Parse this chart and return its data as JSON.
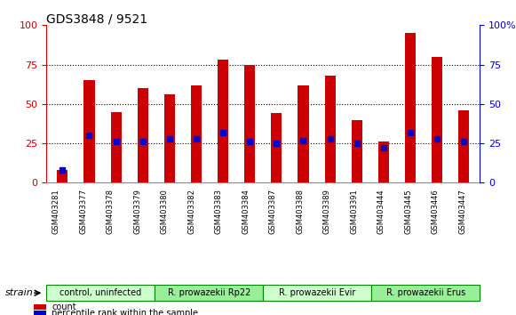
{
  "title": "GDS3848 / 9521",
  "samples": [
    "GSM403281",
    "GSM403377",
    "GSM403378",
    "GSM403379",
    "GSM403380",
    "GSM403382",
    "GSM403383",
    "GSM403384",
    "GSM403387",
    "GSM403388",
    "GSM403389",
    "GSM403391",
    "GSM403444",
    "GSM403445",
    "GSM403446",
    "GSM403447"
  ],
  "count_values": [
    8,
    65,
    45,
    60,
    56,
    62,
    78,
    75,
    44,
    62,
    68,
    40,
    26,
    95,
    80,
    46
  ],
  "percentile_values": [
    8,
    30,
    26,
    26,
    28,
    28,
    32,
    26,
    25,
    27,
    28,
    25,
    22,
    32,
    28,
    26
  ],
  "bar_color": "#cc0000",
  "percentile_color": "#0000cc",
  "ylim": [
    0,
    100
  ],
  "yticks": [
    0,
    25,
    50,
    75,
    100
  ],
  "groups": [
    {
      "label": "control, uninfected",
      "start": 0,
      "end": 4,
      "color": "#ccffcc"
    },
    {
      "label": "R. prowazekii Rp22",
      "start": 4,
      "end": 8,
      "color": "#99ee99"
    },
    {
      "label": "R. prowazekii Evir",
      "start": 8,
      "end": 12,
      "color": "#ccffcc"
    },
    {
      "label": "R. prowazekii Erus",
      "start": 12,
      "end": 16,
      "color": "#99ee99"
    }
  ],
  "strain_label": "strain",
  "legend_count": "count",
  "legend_percentile": "percentile rank within the sample",
  "tick_color_left": "#cc0000",
  "tick_color_right": "#0000cc",
  "bg_color": "#ffffff",
  "plot_bg": "#ffffff",
  "grid_color": "#000000",
  "bar_width": 0.4
}
